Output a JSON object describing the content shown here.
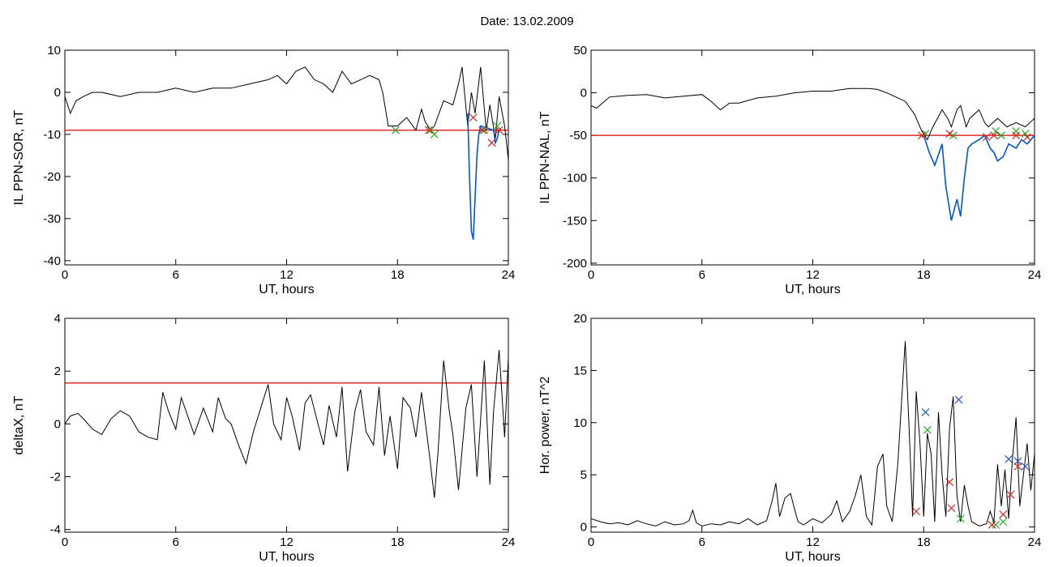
{
  "header": {
    "date_label": "Date:  13.02.2009"
  },
  "chart_data": [
    {
      "id": "sor",
      "type": "line",
      "xlabel": "UT, hours",
      "ylabel": "IL PPN-SOR, nT",
      "xlim": [
        0,
        24
      ],
      "ylim": [
        -41,
        10
      ],
      "xticks": [
        0,
        6,
        12,
        18,
        24
      ],
      "yticks": [
        10,
        0,
        -10,
        -20,
        -30,
        -40
      ],
      "threshold": -9,
      "series": [
        {
          "color": "#000000",
          "x": [
            0,
            0.3,
            0.6,
            1,
            1.5,
            2,
            3,
            4,
            5,
            6,
            7,
            8,
            9,
            10,
            11,
            11.5,
            12,
            12.5,
            13,
            13.5,
            14,
            14.5,
            15,
            15.5,
            16,
            16.5,
            17,
            17.2,
            17.5,
            18,
            18.5,
            19,
            19.3,
            19.5,
            19.8,
            20,
            20.5,
            21,
            21.3,
            21.5,
            21.8,
            22,
            22.2,
            22.5,
            22.8,
            23,
            23.3,
            23.5,
            23.8,
            24
          ],
          "y": [
            -1,
            -5,
            -2,
            -1,
            0,
            0,
            -1,
            0,
            0,
            1,
            0,
            1,
            1,
            2,
            3,
            4,
            2,
            5,
            6,
            3,
            2,
            0,
            5,
            2,
            3,
            4,
            3,
            0,
            -8,
            -8,
            -6,
            -9,
            -4,
            -7,
            -9,
            -8,
            -2,
            -3,
            2,
            6,
            -8,
            0,
            -5,
            6,
            -9,
            -3,
            -11,
            -1,
            -8,
            -16
          ]
        },
        {
          "color": "#0055dd",
          "x": [
            21.8,
            21.9,
            22.0,
            22.1,
            22.2,
            22.3,
            22.4,
            22.5,
            23.2,
            23.3,
            23.4,
            23.5
          ],
          "y": [
            -5,
            -20,
            -33,
            -35,
            -25,
            -15,
            -10,
            -8,
            -9,
            -12,
            -11,
            -9
          ]
        }
      ],
      "markers": [
        {
          "color": "#22aa22",
          "x": [
            17.9,
            19.8,
            20.0,
            22.7,
            23.4
          ],
          "y": [
            -9,
            -9,
            -10,
            -9,
            -8
          ]
        },
        {
          "color": "#dd2222",
          "x": [
            19.7,
            22.1,
            22.6,
            23.1,
            23.5
          ],
          "y": [
            -9,
            -6,
            -9,
            -12,
            -9
          ]
        }
      ]
    },
    {
      "id": "nal",
      "type": "line",
      "xlabel": "UT, hours",
      "ylabel": "IL PPN-NAL, nT",
      "xlim": [
        0,
        24
      ],
      "ylim": [
        -202,
        50
      ],
      "xticks": [
        0,
        6,
        12,
        18,
        24
      ],
      "yticks": [
        50,
        0,
        -50,
        -100,
        -150,
        -200
      ],
      "threshold": -50,
      "series": [
        {
          "color": "#000000",
          "x": [
            0,
            0.3,
            1,
            2,
            3,
            4,
            5,
            6,
            6.5,
            7,
            7.5,
            8,
            9,
            10,
            11,
            12,
            13,
            14,
            15,
            15.5,
            16,
            16.5,
            17,
            17.5,
            17.9,
            18.2,
            18.5,
            19,
            19.3,
            19.5,
            19.8,
            20,
            20.3,
            20.5,
            21,
            21.3,
            21.5,
            22,
            22.5,
            23,
            23.5,
            24
          ],
          "y": [
            -15,
            -18,
            -5,
            -3,
            -2,
            -6,
            -4,
            -2,
            -10,
            -20,
            -12,
            -12,
            -6,
            -4,
            0,
            2,
            2,
            5,
            5,
            4,
            0,
            -5,
            -10,
            -25,
            -45,
            -55,
            -40,
            -20,
            -30,
            -40,
            -20,
            -15,
            -40,
            -30,
            -20,
            -35,
            -40,
            -30,
            -40,
            -35,
            -40,
            -30
          ]
        },
        {
          "color": "#0055dd",
          "x": [
            18.0,
            18.3,
            18.6,
            19.0,
            19.2,
            19.5,
            19.8,
            20.0,
            20.2,
            20.4,
            20.6,
            21.0,
            21.3,
            21.6,
            21.8,
            22.0,
            22.3,
            22.6,
            23.0,
            23.3,
            23.6,
            24.0
          ],
          "y": [
            -50,
            -70,
            -85,
            -60,
            -110,
            -150,
            -125,
            -145,
            -100,
            -65,
            -60,
            -55,
            -50,
            -65,
            -70,
            -80,
            -75,
            -60,
            -65,
            -55,
            -60,
            -50
          ]
        }
      ],
      "markers": [
        {
          "color": "#22aa22",
          "x": [
            18.1,
            19.6,
            21.9,
            22.2,
            23.0,
            23.5
          ],
          "y": [
            -48,
            -50,
            -45,
            -50,
            -45,
            -48
          ]
        },
        {
          "color": "#dd2222",
          "x": [
            17.9,
            19.4,
            21.4,
            21.8,
            23.0,
            23.6
          ],
          "y": [
            -50,
            -48,
            -52,
            -50,
            -50,
            -52
          ]
        }
      ]
    },
    {
      "id": "deltax",
      "type": "line",
      "xlabel": "UT, hours",
      "ylabel": "deltaX, nT",
      "xlim": [
        0,
        24
      ],
      "ylim": [
        -4.1,
        4
      ],
      "xticks": [
        0,
        6,
        12,
        18,
        24
      ],
      "yticks": [
        4,
        2,
        0,
        -2,
        -4
      ],
      "threshold": 1.55,
      "series": [
        {
          "color": "#000000",
          "x": [
            0,
            0.3,
            0.7,
            1,
            1.5,
            2,
            2.5,
            3,
            3.5,
            4,
            4.5,
            5,
            5.3,
            5.6,
            6,
            6.3,
            6.7,
            7,
            7.5,
            8,
            8.3,
            8.7,
            9,
            9.4,
            9.8,
            10.2,
            10.6,
            11,
            11.3,
            11.7,
            12,
            12.3,
            12.7,
            13,
            13.3,
            13.7,
            14,
            14.3,
            14.7,
            15,
            15.3,
            15.7,
            16,
            16.3,
            16.7,
            17,
            17.3,
            17.6,
            18,
            18.3,
            18.7,
            19,
            19.3,
            19.7,
            20,
            20.2,
            20.5,
            20.8,
            21,
            21.3,
            21.7,
            22,
            22.3,
            22.7,
            23,
            23.2,
            23.5,
            23.8,
            24
          ],
          "y": [
            0,
            0.3,
            0.4,
            0.2,
            -0.2,
            -0.4,
            0.2,
            0.5,
            0.3,
            -0.3,
            -0.5,
            -0.6,
            1.2,
            0.5,
            -0.2,
            1.0,
            0.2,
            -0.4,
            0.6,
            -0.3,
            1.0,
            0.2,
            0.0,
            -0.8,
            -1.5,
            -0.3,
            0.6,
            1.5,
            0.0,
            -0.6,
            1.0,
            0.3,
            -1.0,
            0.8,
            1.1,
            0.0,
            -0.8,
            0.7,
            -0.5,
            1.4,
            -1.8,
            0.5,
            1.3,
            -0.3,
            -0.8,
            1.4,
            -1.2,
            0.3,
            -1.7,
            1.0,
            0.6,
            -0.5,
            1.2,
            -1.0,
            -2.8,
            -1.0,
            2.4,
            0.5,
            -0.4,
            -2.5,
            0.6,
            1.5,
            -2.0,
            2.4,
            -2.3,
            0.5,
            2.8,
            -0.5,
            2.5
          ]
        }
      ],
      "markers": []
    },
    {
      "id": "power",
      "type": "line",
      "xlabel": "UT, hours",
      "ylabel": "Hor. power, nT^2",
      "xlim": [
        0,
        24
      ],
      "ylim": [
        -0.5,
        20
      ],
      "xticks": [
        0,
        6,
        12,
        18,
        24
      ],
      "yticks": [
        20,
        15,
        10,
        5,
        0
      ],
      "threshold": null,
      "series": [
        {
          "color": "#000000",
          "x": [
            0,
            0.5,
            1,
            1.5,
            2,
            2.5,
            3,
            3.5,
            4,
            4.5,
            5,
            5.3,
            5.5,
            5.7,
            6,
            6.5,
            7,
            7.5,
            8,
            8.5,
            9,
            9.5,
            9.8,
            10,
            10.2,
            10.5,
            10.8,
            11,
            11.2,
            11.5,
            12,
            12.5,
            13,
            13.3,
            13.6,
            14,
            14.3,
            14.6,
            14.9,
            15.2,
            15.5,
            15.8,
            16,
            16.3,
            16.6,
            17,
            17.2,
            17.4,
            17.6,
            17.8,
            18,
            18.2,
            18.4,
            18.6,
            18.8,
            19,
            19.2,
            19.4,
            19.6,
            19.8,
            20,
            20.2,
            20.4,
            20.6,
            20.8,
            21,
            21.2,
            21.4,
            21.6,
            21.8,
            22,
            22.2,
            22.4,
            22.6,
            22.8,
            23,
            23.2,
            23.4,
            23.6,
            23.8,
            24
          ],
          "y": [
            0.8,
            0.5,
            0.3,
            0.4,
            0.2,
            0.6,
            0.3,
            0.1,
            0.5,
            0.2,
            0.3,
            0.6,
            1.6,
            0.4,
            0.1,
            0.3,
            0.2,
            0.5,
            0.3,
            0.8,
            0.2,
            0.6,
            2.5,
            4.2,
            1.0,
            2.8,
            3.2,
            1.8,
            0.5,
            0.2,
            0.8,
            0.4,
            1.2,
            2.5,
            0.5,
            1.5,
            3.0,
            5.0,
            1.0,
            0.2,
            5.8,
            7.0,
            2.0,
            0.5,
            6.0,
            17.8,
            10.0,
            1.0,
            13.0,
            8.0,
            1.0,
            9.0,
            7.0,
            0.5,
            11.0,
            5.0,
            1.0,
            9.5,
            12.5,
            3.0,
            0.5,
            4.0,
            2.0,
            0.5,
            0.3,
            0.1,
            0.2,
            0.3,
            1.5,
            0.4,
            6.0,
            2.0,
            5.5,
            0.8,
            6.5,
            10.5,
            2.0,
            5.0,
            8.0,
            3.5,
            7.0
          ]
        }
      ],
      "markers": [
        {
          "color": "#2255cc",
          "x": [
            18.1,
            19.9,
            22.6,
            23.1,
            23.5
          ],
          "y": [
            11.0,
            12.2,
            6.5,
            6.3,
            5.8
          ]
        },
        {
          "color": "#22aa22",
          "x": [
            18.2,
            20.0,
            21.9,
            22.3
          ],
          "y": [
            9.3,
            0.8,
            0.2,
            0.5
          ]
        },
        {
          "color": "#dd2222",
          "x": [
            17.6,
            19.4,
            19.5,
            22.7,
            23.1,
            22.3,
            21.7
          ],
          "y": [
            1.5,
            4.3,
            1.8,
            3.1,
            5.8,
            1.2,
            0.2
          ]
        }
      ]
    }
  ]
}
